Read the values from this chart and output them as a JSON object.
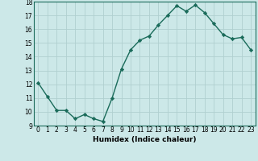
{
  "x": [
    0,
    1,
    2,
    3,
    4,
    5,
    6,
    7,
    8,
    9,
    10,
    11,
    12,
    13,
    14,
    15,
    16,
    17,
    18,
    19,
    20,
    21,
    22,
    23
  ],
  "y": [
    12.1,
    11.1,
    10.1,
    10.1,
    9.5,
    9.8,
    9.5,
    9.3,
    11.0,
    13.1,
    14.5,
    15.2,
    15.5,
    16.3,
    17.0,
    17.7,
    17.3,
    17.75,
    17.2,
    16.4,
    15.6,
    15.3,
    15.4,
    14.5
  ],
  "line_color": "#1a6b5a",
  "marker": "D",
  "marker_size": 2.2,
  "bg_color": "#cce8e8",
  "grid_color": "#b0d0d0",
  "xlabel": "Humidex (Indice chaleur)",
  "xlim": [
    -0.5,
    23.5
  ],
  "ylim": [
    9,
    18
  ],
  "yticks": [
    9,
    10,
    11,
    12,
    13,
    14,
    15,
    16,
    17,
    18
  ],
  "xticks": [
    0,
    1,
    2,
    3,
    4,
    5,
    6,
    7,
    8,
    9,
    10,
    11,
    12,
    13,
    14,
    15,
    16,
    17,
    18,
    19,
    20,
    21,
    22,
    23
  ],
  "xtick_labels": [
    "0",
    "1",
    "2",
    "3",
    "4",
    "5",
    "6",
    "7",
    "8",
    "9",
    "10",
    "11",
    "12",
    "13",
    "14",
    "15",
    "16",
    "17",
    "18",
    "19",
    "20",
    "21",
    "22",
    "23"
  ],
  "xlabel_fontsize": 6.5,
  "tick_fontsize": 5.5,
  "line_width": 1.0
}
